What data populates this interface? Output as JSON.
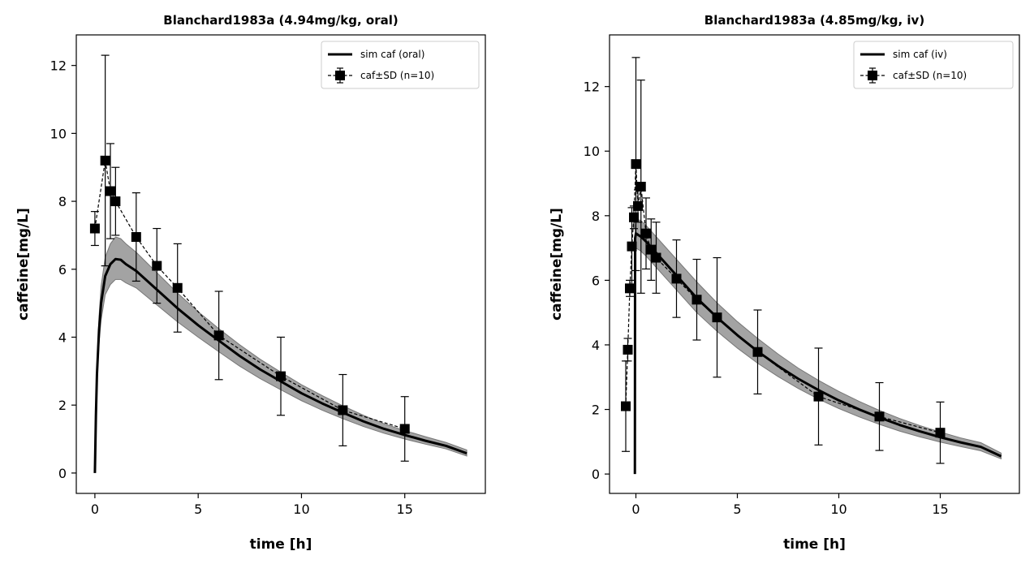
{
  "chart_data": [
    {
      "type": "line",
      "title": "Blanchard1983a (4.94mg/kg, oral)",
      "xlabel": "time [h]",
      "ylabel": "caffeine[mg/L]",
      "xlim": [
        -0.9,
        18.9
      ],
      "ylim": [
        -0.6,
        12.9
      ],
      "xticks": [
        0,
        5,
        10,
        15
      ],
      "yticks": [
        0,
        2,
        4,
        6,
        8,
        10,
        12
      ],
      "grid": false,
      "legend_position": "top-right",
      "legend": [
        "sim caf (oral)",
        "caf±SD (n=10)"
      ],
      "series": [
        {
          "name": "sim caf (oral)",
          "kind": "simulation",
          "x": [
            0,
            0.05,
            0.1,
            0.2,
            0.3,
            0.5,
            0.75,
            1.0,
            1.25,
            1.5,
            2,
            3,
            4,
            5,
            6,
            7,
            8,
            9,
            10,
            11,
            12,
            13,
            14,
            15,
            16,
            17,
            18
          ],
          "y": [
            0,
            1.7,
            2.9,
            4.2,
            5.0,
            5.8,
            6.15,
            6.3,
            6.28,
            6.15,
            5.95,
            5.4,
            4.85,
            4.35,
            3.9,
            3.45,
            3.05,
            2.7,
            2.35,
            2.05,
            1.78,
            1.52,
            1.3,
            1.12,
            0.95,
            0.8,
            0.58
          ],
          "sd_band": {
            "lower": [
              0,
              1.55,
              2.6,
              3.8,
              4.5,
              5.25,
              5.55,
              5.7,
              5.7,
              5.6,
              5.45,
              4.95,
              4.45,
              4.0,
              3.57,
              3.15,
              2.78,
              2.45,
              2.13,
              1.85,
              1.6,
              1.37,
              1.17,
              1.0,
              0.85,
              0.71,
              0.5
            ],
            "upper": [
              0,
              1.85,
              3.2,
              4.6,
              5.5,
              6.35,
              6.75,
              6.95,
              6.9,
              6.75,
              6.5,
              5.9,
              5.3,
              4.75,
              4.25,
              3.78,
              3.35,
              2.97,
              2.6,
              2.28,
              1.98,
              1.7,
              1.45,
              1.25,
              1.07,
              0.9,
              0.68
            ]
          }
        },
        {
          "name": "caf±SD (n=10)",
          "kind": "data",
          "x": [
            0,
            0.5,
            0.75,
            1,
            2,
            3,
            4,
            6,
            9,
            12,
            15
          ],
          "y": [
            7.2,
            9.2,
            8.3,
            8.0,
            6.95,
            6.1,
            5.45,
            4.05,
            2.85,
            1.85,
            1.3
          ],
          "sd": [
            0.5,
            3.1,
            1.4,
            1.0,
            1.3,
            1.1,
            1.3,
            1.3,
            1.15,
            1.05,
            0.95
          ]
        }
      ]
    },
    {
      "type": "line",
      "title": "Blanchard1983a (4.85mg/kg, iv)",
      "xlabel": "time [h]",
      "ylabel": "caffeine[mg/L]",
      "xlim": [
        -1.3,
        18.9
      ],
      "ylim": [
        -0.6,
        13.6
      ],
      "xticks": [
        0,
        5,
        10,
        15
      ],
      "yticks": [
        0,
        2,
        4,
        6,
        8,
        10,
        12
      ],
      "grid": false,
      "legend_position": "top-right",
      "legend": [
        "sim caf (iv)",
        "caf±SD (n=10)"
      ],
      "series": [
        {
          "name": "sim caf (iv)",
          "kind": "simulation",
          "x": [
            -0.05,
            -0.04,
            0,
            0.25,
            0.5,
            1,
            1.5,
            2,
            3,
            4,
            5,
            6,
            7,
            8,
            9,
            10,
            11,
            12,
            13,
            14,
            15,
            16,
            17,
            18
          ],
          "y": [
            0,
            7.3,
            7.45,
            7.35,
            7.2,
            6.85,
            6.5,
            6.15,
            5.45,
            4.85,
            4.3,
            3.8,
            3.35,
            2.95,
            2.6,
            2.28,
            2.0,
            1.75,
            1.52,
            1.32,
            1.14,
            0.98,
            0.84,
            0.55
          ],
          "sd_band": {
            "lower": [
              0,
              6.9,
              7.0,
              6.9,
              6.75,
              6.4,
              6.05,
              5.7,
              5.0,
              4.42,
              3.9,
              3.43,
              3.02,
              2.65,
              2.32,
              2.03,
              1.77,
              1.54,
              1.33,
              1.15,
              0.99,
              0.85,
              0.72,
              0.47
            ],
            "upper": [
              0,
              7.7,
              7.9,
              7.85,
              7.7,
              7.35,
              7.0,
              6.65,
              5.95,
              5.3,
              4.72,
              4.2,
              3.72,
              3.28,
              2.9,
              2.56,
              2.25,
              1.97,
              1.72,
              1.5,
              1.3,
              1.12,
              0.97,
              0.65
            ]
          }
        },
        {
          "name": "caf±SD (n=10)",
          "kind": "data",
          "x": [
            -0.5,
            -0.4,
            -0.3,
            -0.2,
            -0.1,
            0,
            0.1,
            0.25,
            0.5,
            0.75,
            1,
            2,
            3,
            4,
            6,
            9,
            12,
            15
          ],
          "y": [
            2.1,
            3.85,
            5.75,
            7.05,
            7.95,
            9.6,
            8.3,
            8.9,
            7.45,
            6.95,
            6.7,
            6.05,
            5.4,
            4.85,
            3.78,
            2.4,
            1.78,
            1.28
          ],
          "sd": [
            1.4,
            0.35,
            0.25,
            1.2,
            0.35,
            3.3,
            0.5,
            3.3,
            1.1,
            0.95,
            1.1,
            1.2,
            1.25,
            1.85,
            1.3,
            1.5,
            1.05,
            0.95
          ]
        }
      ]
    }
  ]
}
